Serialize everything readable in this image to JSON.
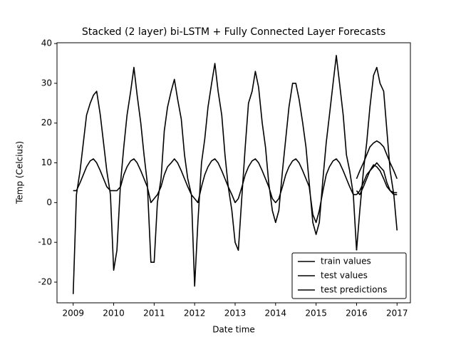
{
  "chart_data": {
    "type": "line",
    "title": "Stacked (2 layer) bi-LSTM + Fully Connected Layer Forecasts",
    "xlabel": "Date time",
    "ylabel": "Temp (Celcius)",
    "xlim": [
      2008.6,
      2017.33
    ],
    "ylim": [
      -25.2,
      40.2
    ],
    "xticks": [
      2009,
      2010,
      2011,
      2012,
      2013,
      2014,
      2015,
      2016,
      2017
    ],
    "yticks": [
      -20,
      -10,
      0,
      10,
      20,
      30,
      40
    ],
    "grid": false,
    "legend": "lower right",
    "series": [
      {
        "name": "train values",
        "color": "#000000",
        "x": [
          2009.0,
          2009.08,
          2009.17,
          2009.25,
          2009.33,
          2009.42,
          2009.5,
          2009.58,
          2009.67,
          2009.75,
          2009.83,
          2009.92,
          2010.0,
          2010.08,
          2010.17,
          2010.25,
          2010.33,
          2010.42,
          2010.5,
          2010.58,
          2010.67,
          2010.75,
          2010.83,
          2010.92,
          2011.0,
          2011.08,
          2011.17,
          2011.25,
          2011.33,
          2011.42,
          2011.5,
          2011.58,
          2011.67,
          2011.75,
          2011.83,
          2011.92,
          2012.0,
          2012.08,
          2012.17,
          2012.25,
          2012.33,
          2012.42,
          2012.5,
          2012.58,
          2012.67,
          2012.75,
          2012.83,
          2012.92,
          2013.0,
          2013.08,
          2013.17,
          2013.25,
          2013.33,
          2013.42,
          2013.5,
          2013.58,
          2013.67,
          2013.75,
          2013.83,
          2013.92,
          2014.0,
          2014.08,
          2014.17,
          2014.25,
          2014.33,
          2014.42,
          2014.5,
          2014.58,
          2014.67,
          2014.75,
          2014.83,
          2014.92,
          2015.0,
          2015.08,
          2015.17,
          2015.25,
          2015.33,
          2015.42,
          2015.5,
          2015.58,
          2015.67,
          2015.75,
          2015.83,
          2015.92,
          2016.0,
          null,
          2009.0,
          2009.08,
          2009.17,
          2009.25,
          2009.33,
          2009.42,
          2009.5,
          2009.58,
          2009.67,
          2009.75,
          2009.83,
          2009.92,
          2010.0,
          2010.08,
          2010.17,
          2010.25,
          2010.33,
          2010.42,
          2010.5,
          2010.58,
          2010.67,
          2010.75,
          2010.83,
          2010.92,
          2011.0,
          2011.08,
          2011.17,
          2011.25,
          2011.33,
          2011.42,
          2011.5,
          2011.58,
          2011.67,
          2011.75,
          2011.83,
          2011.92,
          2012.0,
          2012.08,
          2012.17,
          2012.25,
          2012.33,
          2012.42,
          2012.5,
          2012.58,
          2012.67,
          2012.75,
          2012.83,
          2012.92,
          2013.0,
          2013.08,
          2013.17,
          2013.25,
          2013.33,
          2013.42,
          2013.5,
          2013.58,
          2013.67,
          2013.75,
          2013.83,
          2013.92,
          2014.0,
          2014.08,
          2014.17,
          2014.25,
          2014.33,
          2014.42,
          2014.5,
          2014.58,
          2014.67,
          2014.75,
          2014.83,
          2014.92,
          2015.0,
          2015.08,
          2015.17,
          2015.25,
          2015.33,
          2015.42,
          2015.5,
          2015.58,
          2015.67,
          2015.75,
          2015.83,
          2015.92,
          2016.0
        ],
        "values": [
          -23,
          2,
          8,
          15,
          22,
          25,
          27,
          28,
          22,
          15,
          8,
          2,
          -17,
          -12,
          5,
          14,
          22,
          28,
          34,
          27,
          20,
          12,
          5,
          -15,
          -15,
          0,
          6,
          18,
          24,
          28,
          31,
          26,
          21,
          12,
          6,
          2,
          -21,
          -5,
          10,
          16,
          24,
          30,
          35,
          28,
          22,
          12,
          4,
          -2,
          -10,
          -12,
          2,
          14,
          25,
          28,
          33,
          29,
          20,
          14,
          5,
          -2,
          -5,
          -2,
          8,
          16,
          24,
          30,
          30,
          26,
          20,
          14,
          5,
          -5,
          -8,
          -5,
          6,
          15,
          22,
          30,
          37,
          30,
          22,
          12,
          8,
          2,
          -12,
          null,
          3,
          3,
          5,
          7,
          9,
          10.5,
          11,
          10,
          8,
          6,
          4,
          3,
          3,
          3,
          4,
          7,
          9,
          10.5,
          11,
          10,
          8,
          6,
          4,
          0,
          1,
          2,
          4,
          7,
          9,
          10,
          11,
          10,
          8,
          6,
          4,
          2,
          1,
          0,
          4,
          7,
          9,
          10.5,
          11,
          10,
          8,
          6,
          4,
          2,
          0,
          1,
          4,
          7,
          9,
          10.5,
          11,
          10,
          8,
          6,
          4,
          1,
          0,
          1,
          4,
          7,
          9,
          10.5,
          11,
          10,
          8,
          6,
          4,
          -3,
          -5,
          -2,
          3,
          7,
          9,
          10.5,
          11,
          10,
          8,
          6,
          4,
          2,
          2
        ]
      },
      {
        "name": "test values",
        "color": "#000000",
        "x": [
          2016.0,
          2016.08,
          2016.17,
          2016.25,
          2016.33,
          2016.42,
          2016.5,
          2016.58,
          2016.67,
          2016.75,
          2016.83,
          2016.92,
          2017.0,
          null,
          2016.0,
          2016.08,
          2016.17,
          2016.25,
          2016.33,
          2016.42,
          2016.5,
          2016.58,
          2016.67,
          2016.75,
          2016.83,
          2016.92,
          2017.0
        ],
        "values": [
          -12,
          -2,
          8,
          15,
          24,
          32,
          34,
          30,
          28,
          18,
          8,
          2,
          -7,
          null,
          3,
          2,
          4,
          6,
          8,
          9,
          10,
          9,
          8,
          5,
          3,
          2,
          2
        ]
      },
      {
        "name": "test predictions",
        "color": "#000000",
        "x": [
          2016.0,
          2016.08,
          2016.17,
          2016.25,
          2016.33,
          2016.42,
          2016.5,
          2016.58,
          2016.67,
          2016.75,
          2016.83,
          2016.92,
          2017.0,
          null,
          2016.0,
          2016.08,
          2016.17,
          2016.25,
          2016.33,
          2016.42,
          2016.5,
          2016.58,
          2016.67,
          2016.75,
          2016.83,
          2016.92,
          2017.0
        ],
        "values": [
          6,
          8,
          10,
          12,
          14,
          15,
          15.5,
          15,
          14,
          12,
          10,
          8,
          6,
          null,
          2,
          3,
          5,
          7,
          8,
          9.5,
          9,
          8,
          6,
          4,
          3,
          2.5,
          2.5
        ]
      }
    ]
  }
}
